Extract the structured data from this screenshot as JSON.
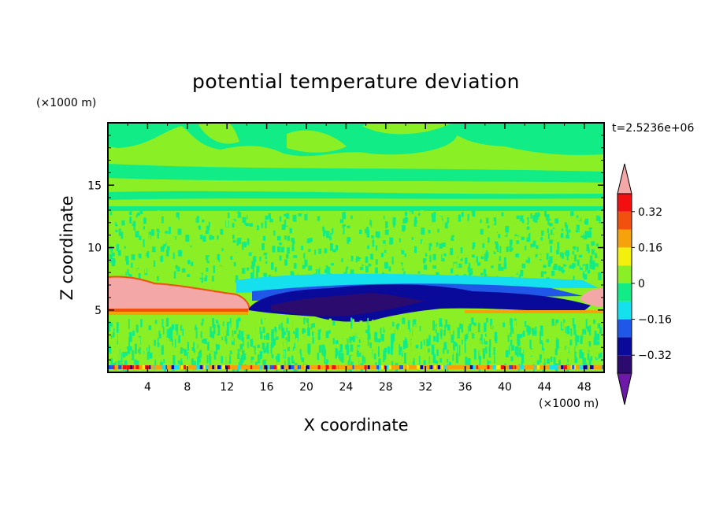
{
  "chart_data": {
    "type": "heatmap",
    "title": "potential temperature deviation",
    "xlabel": "X coordinate",
    "ylabel": "Z coordinate",
    "x_unit_label": "(×1000 m)",
    "y_unit_label": "(×1000 m)",
    "time_label": "t=2.5236e+06",
    "xlim": [
      0,
      50
    ],
    "ylim": [
      0,
      20
    ],
    "x_ticks": [
      4,
      8,
      12,
      16,
      20,
      24,
      28,
      32,
      36,
      40,
      44,
      48
    ],
    "x_tick_labels": [
      "4",
      "8",
      "12",
      "16",
      "20",
      "24",
      "28",
      "32",
      "36",
      "40",
      "44",
      "48"
    ],
    "y_ticks": [
      5,
      10,
      15
    ],
    "y_tick_labels": [
      "5",
      "10",
      "15"
    ],
    "colorbar": {
      "levels": [
        -0.4,
        -0.32,
        -0.24,
        -0.16,
        -0.08,
        0,
        0.08,
        0.16,
        0.24,
        0.32,
        0.4
      ],
      "tick_values": [
        0.32,
        0.16,
        0,
        -0.16,
        -0.32
      ],
      "tick_labels": [
        "0.32",
        "0.16",
        "0",
        "−0.16",
        "−0.32"
      ],
      "colors": [
        "#2c0b6f",
        "#0a0a9a",
        "#1f57e8",
        "#14e0ee",
        "#12ec86",
        "#8aef24",
        "#f4f00d",
        "#f6a20b",
        "#f1510c",
        "#f30f10"
      ],
      "under_color": "#6c19a8",
      "over_color": "#f4a7a7"
    },
    "field_summary": [
      {
        "region": "upper layer (z 13–20 km)",
        "value_range": [
          0,
          0.08
        ]
      },
      {
        "region": "mid troposphere (z 7.5–13 km)",
        "value_range": [
          -0.08,
          0.08
        ]
      },
      {
        "region": "warm anomaly near z≈5.5 km, x 0–15 km",
        "value_range": [
          0.4,
          0.5
        ]
      },
      {
        "region": "cold anomaly near z≈5 km, x 15–49 km",
        "value_range": [
          -0.5,
          -0.32
        ]
      },
      {
        "region": "lower layer (z 0.5–4.5 km)",
        "value_range": [
          -0.08,
          0.08
        ]
      }
    ]
  }
}
